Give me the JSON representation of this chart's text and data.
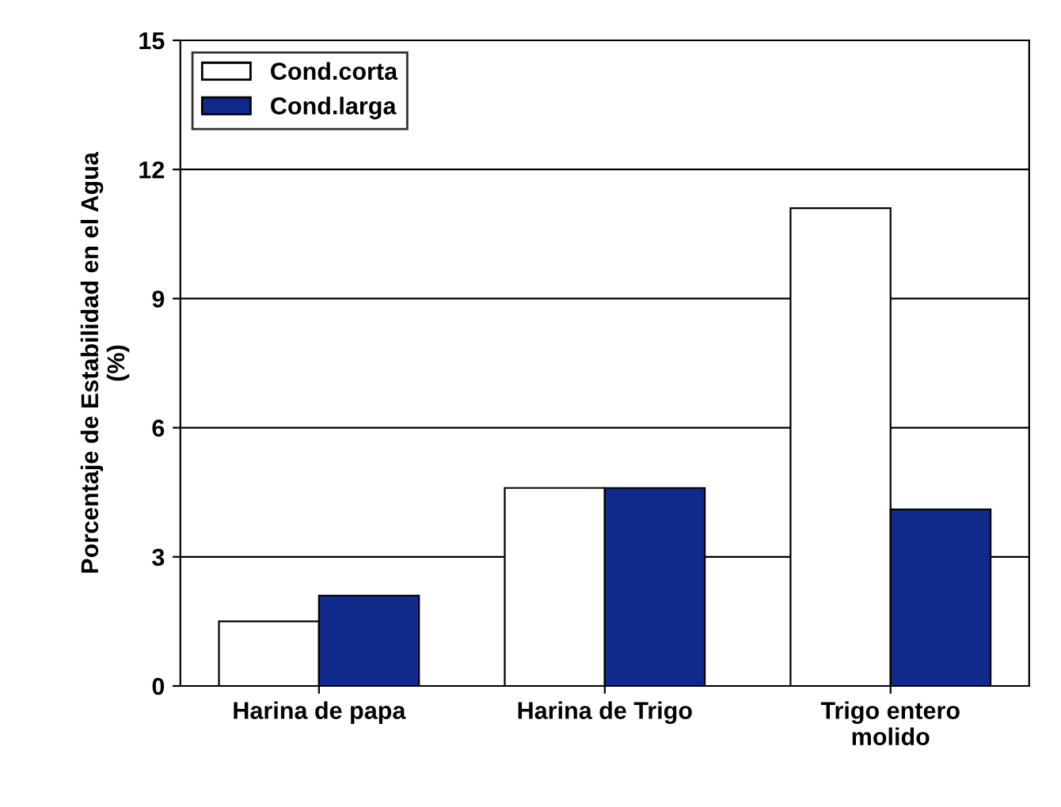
{
  "chart_data": {
    "type": "bar",
    "categories": [
      "Harina de papa",
      "Harina de Trigo",
      "Trigo entero\nmolido"
    ],
    "series": [
      {
        "name": "Cond.corta",
        "color": "#ffffff",
        "values": [
          1.5,
          4.6,
          11.1
        ]
      },
      {
        "name": "Cond.larga",
        "color": "#102a8c",
        "values": [
          2.1,
          4.6,
          4.1
        ]
      }
    ],
    "ylabel": "Porcentaje de Estabilidad en el Agua\n(%)",
    "ylim": [
      0,
      15
    ],
    "yticks": [
      0,
      3,
      6,
      9,
      12,
      15
    ],
    "grid": "y",
    "legend": "top left"
  }
}
